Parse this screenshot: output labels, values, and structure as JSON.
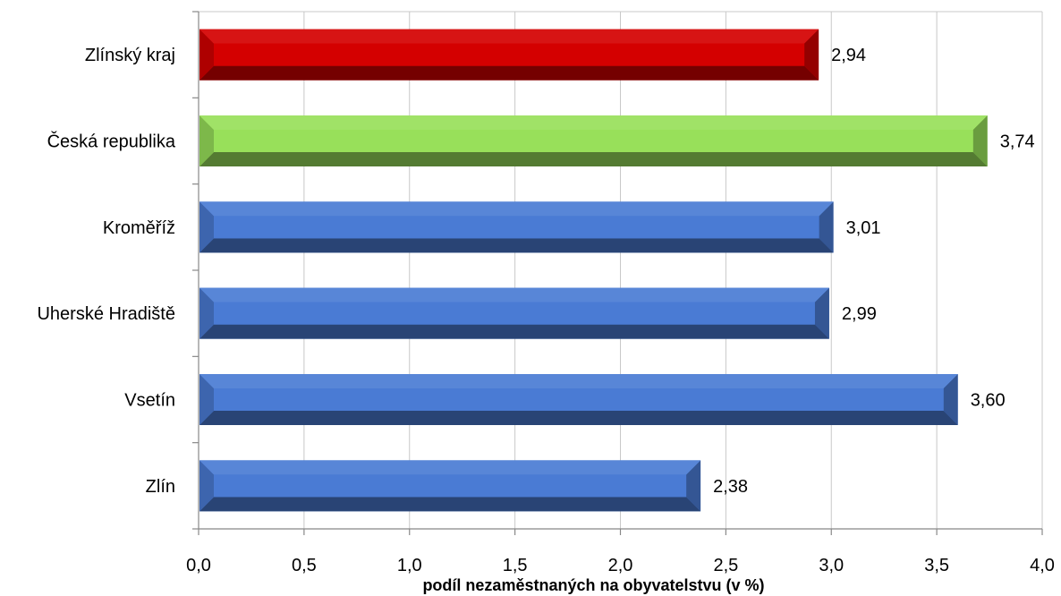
{
  "chart_data": {
    "type": "bar",
    "orientation": "horizontal",
    "categories": [
      "Zlínský kraj",
      "Česká republika",
      "Kroměříž",
      "Uherské Hradiště",
      "Vsetín",
      "Zlín"
    ],
    "values": [
      2.94,
      3.74,
      3.01,
      2.99,
      3.6,
      2.38
    ],
    "value_labels": [
      "2,94",
      "3,74",
      "3,01",
      "2,99",
      "3,60",
      "2,38"
    ],
    "bar_colors": [
      "#d40000",
      "#98e05a",
      "#4a7bd4",
      "#4a7bd4",
      "#4a7bd4",
      "#4a7bd4"
    ],
    "xlabel": "podíl nezaměstnaných na obyvatelstvu (v %)",
    "ylabel": "",
    "xlim": [
      0,
      4
    ],
    "x_ticks": [
      0,
      0.5,
      1,
      1.5,
      2,
      2.5,
      3,
      3.5,
      4
    ],
    "x_tick_labels": [
      "0,0",
      "0,5",
      "1,0",
      "1,5",
      "2,0",
      "2,5",
      "3,0",
      "3,5",
      "4,0"
    ],
    "grid": "vertical",
    "legend": "none"
  }
}
